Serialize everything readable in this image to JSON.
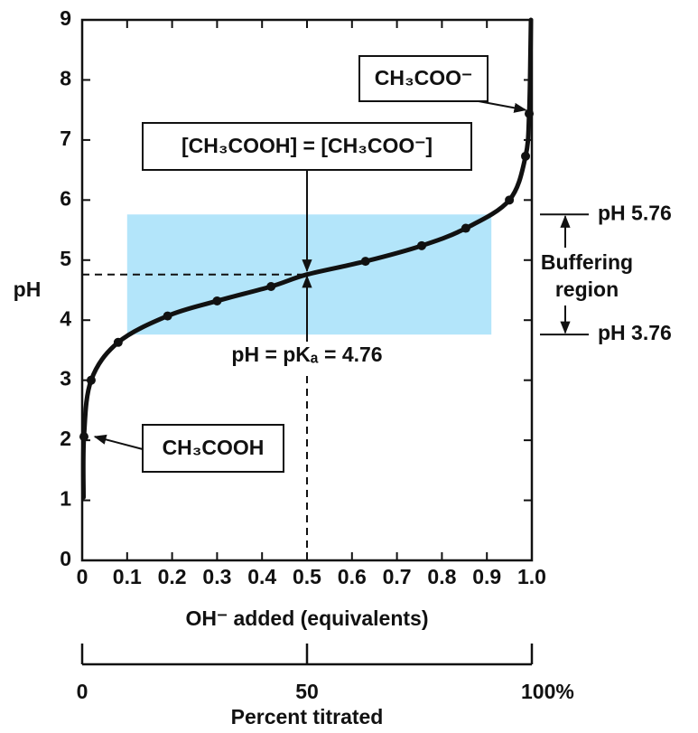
{
  "chart_data": {
    "type": "line",
    "xlabel": "OH⁻ added (equivalents)",
    "ylabel": "pH",
    "xlim": [
      0,
      1
    ],
    "ylim": [
      0,
      9
    ],
    "xticks": [
      0,
      0.1,
      0.2,
      0.3,
      0.4,
      0.5,
      0.6,
      0.7,
      0.8,
      0.9,
      {
        "value": 1,
        "label": "1.0"
      }
    ],
    "yticks": [
      0,
      1,
      2,
      3,
      4,
      5,
      6,
      7,
      8,
      9
    ],
    "series": [
      {
        "type": "line",
        "color": "#111111",
        "x": [
          0.003,
          0.004,
          0.02,
          0.08,
          0.19,
          0.3,
          0.42,
          0.5,
          0.63,
          0.755,
          0.853,
          0.95,
          0.986,
          0.994,
          0.997,
          0.998
        ],
        "values": [
          1.05,
          2.06,
          3.0,
          3.63,
          4.07,
          4.32,
          4.56,
          4.76,
          4.98,
          5.24,
          5.53,
          6.0,
          6.73,
          7.44,
          8.5,
          9
        ]
      },
      {
        "type": "scatter",
        "color": "#111111",
        "x": [
          0.004,
          0.02,
          0.08,
          0.19,
          0.3,
          0.42,
          0.63,
          0.755,
          0.853,
          0.95,
          0.986,
          0.994
        ],
        "values": [
          2.06,
          3.0,
          3.63,
          4.07,
          4.32,
          4.56,
          4.98,
          5.24,
          5.53,
          6.0,
          6.73,
          7.44
        ]
      }
    ],
    "buffer_region": {
      "x": [
        0.1,
        0.91
      ],
      "y": [
        3.76,
        5.76
      ],
      "color": "#b3e5fa",
      "label_top": "pH 5.76",
      "label_bottom": "pH 3.76",
      "label": [
        "Buffering",
        "region"
      ]
    },
    "midpoint": {
      "x": 0.5,
      "y": 4.76,
      "label": "pH = pKₐ = 4.76",
      "box": "[CH₃COOH] = [CH₃COO⁻]"
    },
    "annotations": [
      "CH₃COOH",
      "CH₃COO⁻"
    ],
    "x2lim": [
      0,
      100
    ],
    "x2ticks": [
      0,
      50,
      {
        "value": 100,
        "label": "100%"
      }
    ],
    "x2label": "Percent titrated"
  }
}
